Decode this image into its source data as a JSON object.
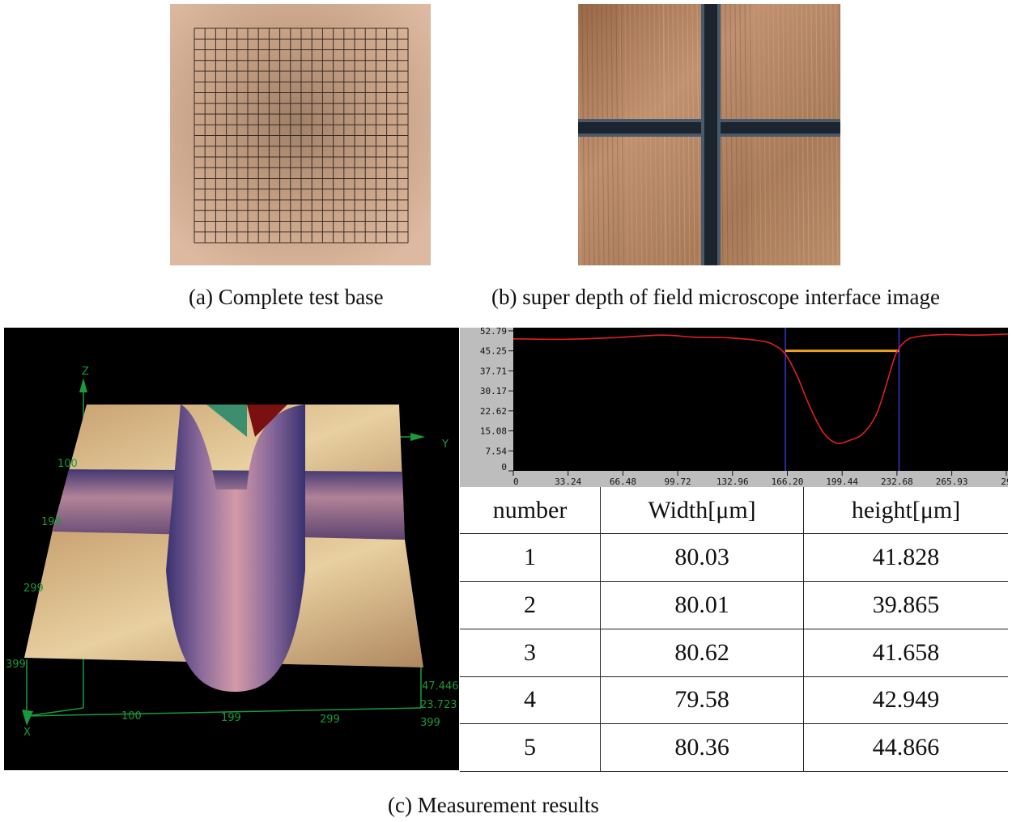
{
  "captions": {
    "a": "(a) Complete test base",
    "b": "(b) super depth of field microscope interface image",
    "c": "(c) Measurement results"
  },
  "axis3d": {
    "z": "Z",
    "y": "Y",
    "x": "X",
    "y_ticks": [
      "100",
      "199",
      "299",
      "399"
    ],
    "x_ticks": [
      "100",
      "199",
      "299",
      "399"
    ],
    "z_ticks": [
      "47.446",
      "23.723"
    ]
  },
  "profile": {
    "y_ticks": [
      "52.79",
      "45.25",
      "37.71",
      "30.17",
      "22.62",
      "15.08",
      "7.54",
      "0"
    ],
    "x_ticks": [
      "0",
      "33.24",
      "66.48",
      "99.72",
      "132.96",
      "166.20",
      "199.44",
      "232.68",
      "265.93",
      "29"
    ]
  },
  "chart_data": {
    "type": "line",
    "title": "",
    "xlabel": "",
    "ylabel": "",
    "xlim": [
      0,
      300
    ],
    "ylim": [
      0,
      54
    ],
    "x": [
      0,
      30,
      60,
      90,
      110,
      130,
      150,
      158,
      165,
      172,
      180,
      188,
      196,
      204,
      212,
      220,
      226,
      232,
      238,
      245,
      260,
      280,
      300
    ],
    "values": [
      49.8,
      49.6,
      50.2,
      51.2,
      50.4,
      50.2,
      49.0,
      47.5,
      44.0,
      36.0,
      24.0,
      14.5,
      10.5,
      11.5,
      14.0,
      21.0,
      32.0,
      44.0,
      49.0,
      50.6,
      51.4,
      51.2,
      51.6
    ],
    "cursor_lines_x": [
      165,
      234
    ],
    "level_line": {
      "x1": 165,
      "x2": 234,
      "y": 45.25
    }
  },
  "table": {
    "headers": [
      "number",
      "Width[μm]",
      "height[μm]"
    ],
    "rows": [
      [
        "1",
        "80.03",
        "41.828"
      ],
      [
        "2",
        "80.01",
        "39.865"
      ],
      [
        "3",
        "80.62",
        "41.658"
      ],
      [
        "4",
        "79.58",
        "42.949"
      ],
      [
        "5",
        "80.36",
        "44.866"
      ]
    ]
  }
}
